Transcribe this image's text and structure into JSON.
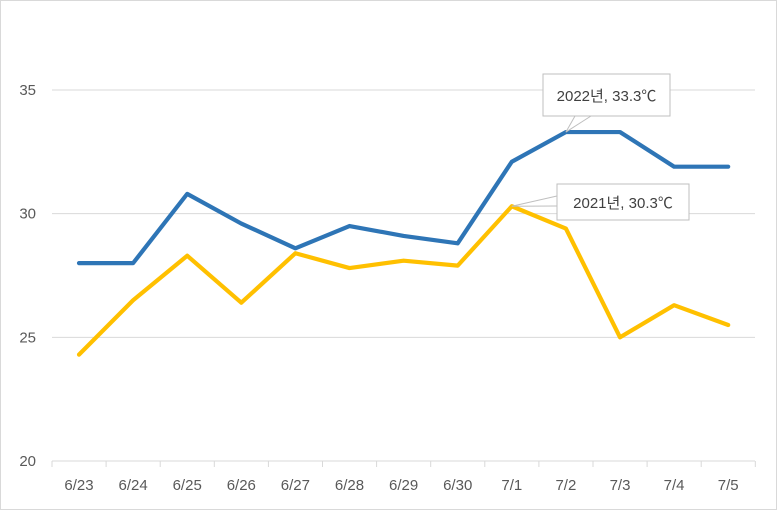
{
  "chart_data": {
    "type": "line",
    "title": "",
    "xlabel": "",
    "ylabel": "",
    "categories": [
      "6/23",
      "6/24",
      "6/25",
      "6/26",
      "6/27",
      "6/28",
      "6/29",
      "6/30",
      "7/1",
      "7/2",
      "7/3",
      "7/4",
      "7/5"
    ],
    "ylim": [
      20,
      35
    ],
    "yticks": [
      "20",
      "25",
      "30",
      "35"
    ],
    "grid": true,
    "legend": "none",
    "series": [
      {
        "color": "#2E75B6",
        "values": [
          28.0,
          28.0,
          30.8,
          29.6,
          28.6,
          29.5,
          29.1,
          28.8,
          32.1,
          33.3,
          33.3,
          31.9,
          31.9
        ]
      },
      {
        "color": "#FFC000",
        "values": [
          24.3,
          26.5,
          28.3,
          26.4,
          28.4,
          27.8,
          28.1,
          27.9,
          30.3,
          29.4,
          25.0,
          26.3,
          25.5
        ]
      }
    ],
    "annotations": [
      {
        "text": "2022년, 33.3℃",
        "series": 0,
        "index": 9
      },
      {
        "text": "2021년, 30.3℃",
        "series": 1,
        "index": 8
      }
    ]
  }
}
